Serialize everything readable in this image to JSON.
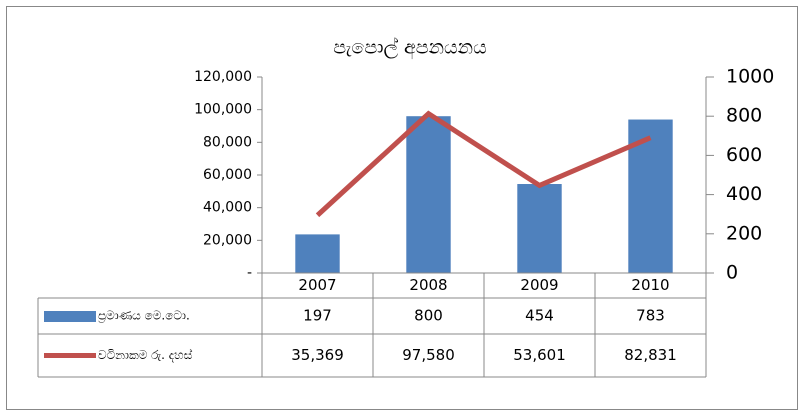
{
  "chart_data": {
    "type": "bar-line",
    "title": "පැපොල් අපනයනය",
    "categories": [
      "2007",
      "2008",
      "2009",
      "2010"
    ],
    "series": [
      {
        "name": "ප්‍රමාණය මෙ.ටො.",
        "color": "#4f81bd",
        "type": "bar",
        "axis": "y2",
        "values": [
          197,
          800,
          454,
          783
        ]
      },
      {
        "name": "වටිනාකම රු. දහස්",
        "color": "#c0504d",
        "type": "line",
        "axis": "y",
        "values": [
          35369,
          97580,
          53601,
          82831
        ],
        "value_labels": [
          "35,369",
          "97,580",
          "53,601",
          "82,831"
        ]
      }
    ],
    "ylim": [
      0,
      120000
    ],
    "yticks": [
      {
        "value": 0,
        "label": "-"
      },
      {
        "value": 20000,
        "label": "20,000"
      },
      {
        "value": 40000,
        "label": "40,000"
      },
      {
        "value": 60000,
        "label": "60,000"
      },
      {
        "value": 80000,
        "label": "80,000"
      },
      {
        "value": 100000,
        "label": "100,000"
      },
      {
        "value": 120000,
        "label": "120,000"
      }
    ],
    "y2lim": [
      0,
      1000
    ],
    "y2ticks": [
      0,
      200,
      400,
      600,
      800,
      1000
    ],
    "data_table": true
  }
}
